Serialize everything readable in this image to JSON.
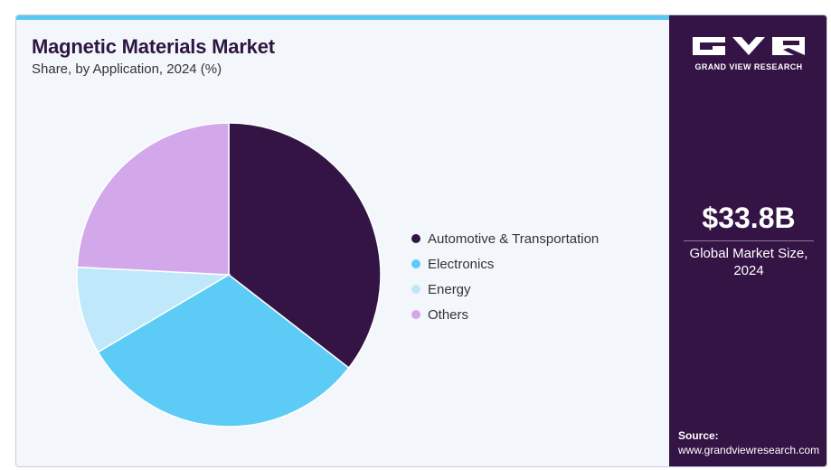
{
  "header": {
    "title": "Magnetic Materials Market",
    "subtitle": "Share, by Application, 2024 (%)"
  },
  "chart_data": {
    "type": "pie",
    "title": "Magnetic Materials Market",
    "subtitle": "Share, by Application, 2024 (%)",
    "legend_position": "right",
    "start": "12 o'clock",
    "direction": "clockwise",
    "slices": [
      {
        "label": "Automotive & Transportation",
        "value": 35.5,
        "color": "#341445"
      },
      {
        "label": "Electronics",
        "value": 31.0,
        "color": "#5ccbf5"
      },
      {
        "label": "Energy",
        "value": 9.3,
        "color": "#bfe9fa"
      },
      {
        "label": "Others",
        "value": 24.2,
        "color": "#d3a8ea"
      }
    ]
  },
  "sidebar": {
    "brand": "GRAND VIEW RESEARCH",
    "market_size": "$33.8B",
    "market_size_label": "Global Market Size, 2024",
    "source_label": "Source:",
    "source_url": "www.grandviewresearch.com"
  },
  "colors": {
    "sidebar_bg": "#341445",
    "accent_strip": "#5ac8f4",
    "title": "#2f1541",
    "card_bg": "#f3f7fb"
  }
}
